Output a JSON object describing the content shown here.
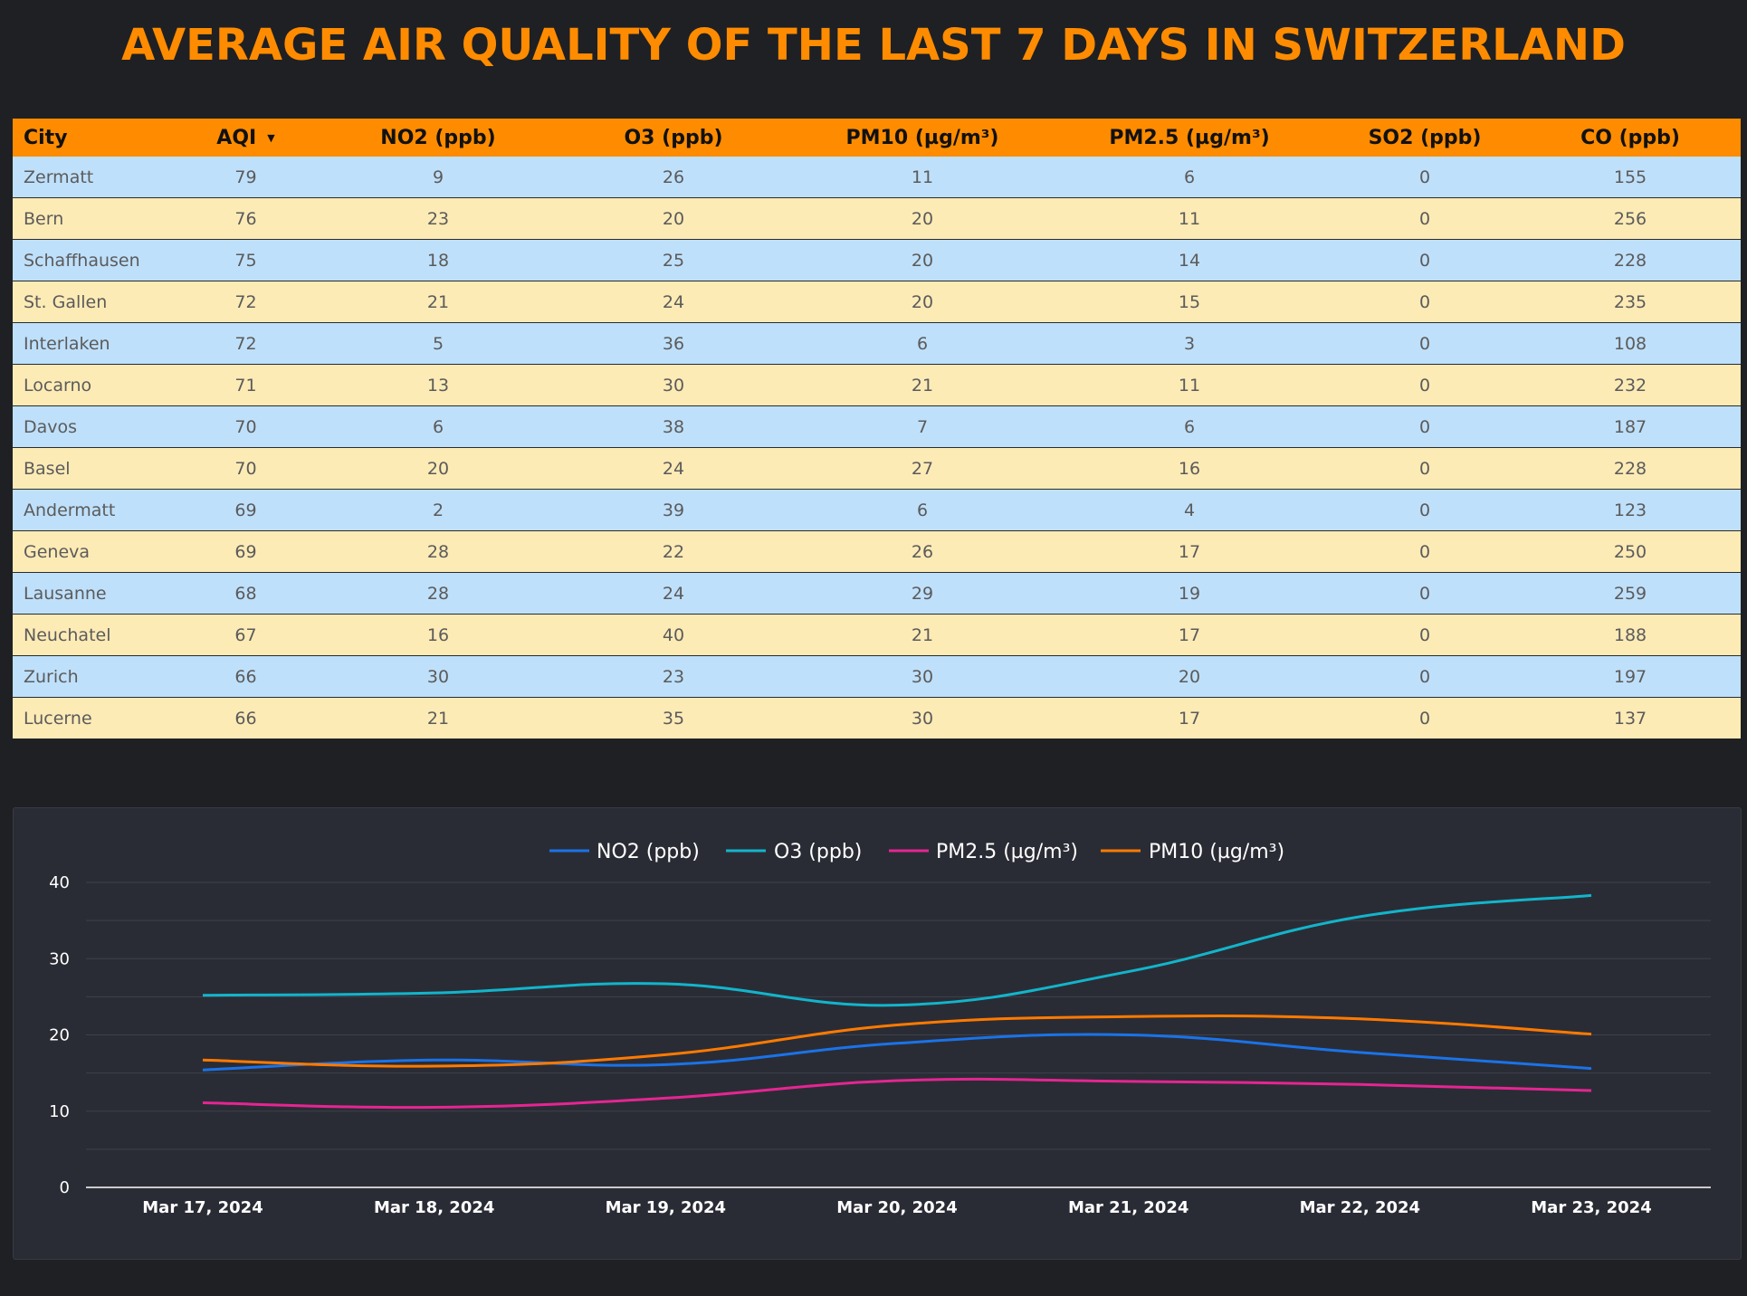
{
  "page": {
    "title": "AVERAGE AIR QUALITY OF THE LAST 7 DAYS IN SWITZERLAND"
  },
  "table": {
    "sort_icon": "triangle-down-icon",
    "columns": [
      "City",
      "AQI",
      "NO2 (ppb)",
      "O3 (ppb)",
      "PM10 (µg/m³)",
      "PM2.5 (µg/m³)",
      "SO2 (ppb)",
      "CO (ppb)"
    ],
    "rows": [
      [
        "Zermatt",
        "79",
        "9",
        "26",
        "11",
        "6",
        "0",
        "155"
      ],
      [
        "Bern",
        "76",
        "23",
        "20",
        "20",
        "11",
        "0",
        "256"
      ],
      [
        "Schaffhausen",
        "75",
        "18",
        "25",
        "20",
        "14",
        "0",
        "228"
      ],
      [
        "St. Gallen",
        "72",
        "21",
        "24",
        "20",
        "15",
        "0",
        "235"
      ],
      [
        "Interlaken",
        "72",
        "5",
        "36",
        "6",
        "3",
        "0",
        "108"
      ],
      [
        "Locarno",
        "71",
        "13",
        "30",
        "21",
        "11",
        "0",
        "232"
      ],
      [
        "Davos",
        "70",
        "6",
        "38",
        "7",
        "6",
        "0",
        "187"
      ],
      [
        "Basel",
        "70",
        "20",
        "24",
        "27",
        "16",
        "0",
        "228"
      ],
      [
        "Andermatt",
        "69",
        "2",
        "39",
        "6",
        "4",
        "0",
        "123"
      ],
      [
        "Geneva",
        "69",
        "28",
        "22",
        "26",
        "17",
        "0",
        "250"
      ],
      [
        "Lausanne",
        "68",
        "28",
        "24",
        "29",
        "19",
        "0",
        "259"
      ],
      [
        "Neuchatel",
        "67",
        "16",
        "40",
        "21",
        "17",
        "0",
        "188"
      ],
      [
        "Zurich",
        "66",
        "30",
        "23",
        "30",
        "20",
        "0",
        "197"
      ],
      [
        "Lucerne",
        "66",
        "21",
        "35",
        "30",
        "17",
        "0",
        "137"
      ]
    ]
  },
  "chart_data": {
    "type": "line",
    "title": "",
    "xlabel": "",
    "ylabel": "",
    "x": [
      "Mar 17, 2024",
      "Mar 18, 2024",
      "Mar 19, 2024",
      "Mar 20, 2024",
      "Mar 21, 2024",
      "Mar 22, 2024",
      "Mar 23, 2024"
    ],
    "ylim": [
      0,
      40
    ],
    "yticks": [
      "0",
      "10",
      "20",
      "30",
      "40"
    ],
    "grid": true,
    "legend_position": "top-center",
    "series": [
      {
        "name": "NO2 (ppb)",
        "color": "#1a73e8",
        "values": [
          15.4,
          16.7,
          16.1,
          18.9,
          20.0,
          17.7,
          15.6
        ]
      },
      {
        "name": "O3 (ppb)",
        "color": "#12b5cb",
        "values": [
          25.2,
          25.5,
          26.7,
          23.9,
          28.3,
          35.5,
          38.3
        ]
      },
      {
        "name": "PM2.5 (µg/m³)",
        "color": "#e52592",
        "values": [
          11.1,
          10.5,
          11.7,
          14.0,
          13.9,
          13.5,
          12.7
        ]
      },
      {
        "name": "PM10 (µg/m³)",
        "color": "#ff7a00",
        "values": [
          16.7,
          15.9,
          17.4,
          21.3,
          22.4,
          22.1,
          20.1
        ]
      }
    ]
  }
}
